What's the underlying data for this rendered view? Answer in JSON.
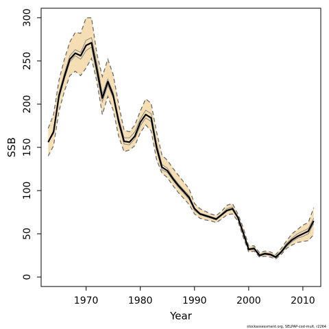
{
  "chart_data": {
    "type": "line",
    "xlabel": "Year",
    "ylabel": "SSB",
    "xlim": [
      1961.7,
      2013.3
    ],
    "ylim": [
      -11,
      311
    ],
    "xticks": [
      1970,
      1980,
      1990,
      2000,
      2010
    ],
    "yticks": [
      0,
      50,
      100,
      150,
      200,
      250,
      300
    ],
    "credit": "stockassessment.org, SELPAP-cod-mult, r2264",
    "colors": {
      "band": "#f5deb3",
      "line": "#000000",
      "ci": "#6b6b6b",
      "inner": "#888888"
    },
    "years": [
      1963,
      1964,
      1965,
      1966,
      1967,
      1968,
      1969,
      1970,
      1971,
      1972,
      1973,
      1974,
      1975,
      1976,
      1977,
      1978,
      1979,
      1980,
      1981,
      1982,
      1983,
      1984,
      1985,
      1986,
      1987,
      1988,
      1989,
      1990,
      1991,
      1992,
      1993,
      1994,
      1995,
      1996,
      1997,
      1998,
      1999,
      2000,
      2001,
      2002,
      2003,
      2004,
      2005,
      2006,
      2007,
      2008,
      2009,
      2010,
      2011,
      2012
    ],
    "series": [
      {
        "role": "estimate",
        "values": [
          156,
          168,
          210,
          232,
          252,
          259,
          256,
          268,
          271,
          240,
          207,
          226,
          210,
          180,
          157,
          156,
          163,
          179,
          188,
          184,
          150,
          127,
          123,
          114,
          106,
          99,
          92,
          79,
          73,
          71,
          69,
          67,
          72,
          77,
          79,
          69,
          51,
          32,
          33,
          25,
          27,
          26,
          23,
          29,
          37,
          43,
          47,
          50,
          53,
          65
        ]
      },
      {
        "role": "inner-upper",
        "values": [
          156,
          170,
          213,
          236,
          256,
          263,
          260,
          274,
          277,
          247,
          212,
          229,
          213,
          184,
          161,
          161,
          168,
          183,
          193,
          189,
          155,
          130,
          126,
          116,
          108,
          101,
          94,
          80,
          74,
          72,
          70,
          68,
          73,
          79,
          81,
          70,
          53,
          33,
          34,
          26,
          28,
          27,
          24,
          30,
          39,
          45,
          50,
          53,
          56,
          68
        ]
      },
      {
        "role": "inner-lower",
        "values": [
          156,
          166,
          207,
          229,
          249,
          256,
          252,
          262,
          266,
          234,
          203,
          222,
          207,
          177,
          154,
          153,
          160,
          175,
          184,
          180,
          147,
          124,
          121,
          112,
          104,
          97,
          90,
          77,
          72,
          70,
          68,
          66,
          71,
          76,
          78,
          68,
          50,
          31,
          32,
          24,
          26,
          25,
          22,
          28,
          35,
          41,
          45,
          47,
          50,
          62
        ]
      },
      {
        "role": "ci-upper",
        "values": [
          172,
          188,
          228,
          252,
          272,
          283,
          282,
          300,
          300,
          258,
          232,
          252,
          234,
          200,
          170,
          168,
          176,
          192,
          206,
          201,
          168,
          141,
          135,
          126,
          118,
          110,
          102,
          85,
          79,
          76,
          73,
          71,
          76,
          83,
          85,
          73,
          57,
          36,
          36,
          28,
          30,
          29,
          26,
          33,
          42,
          50,
          55,
          60,
          63,
          80
        ]
      },
      {
        "role": "ci-lower",
        "values": [
          140,
          152,
          192,
          215,
          233,
          238,
          233,
          242,
          253,
          226,
          188,
          209,
          193,
          163,
          145,
          147,
          152,
          167,
          176,
          169,
          136,
          120,
          115,
          106,
          98,
          91,
          84,
          73,
          68,
          66,
          65,
          63,
          67,
          72,
          73,
          65,
          46,
          29,
          30,
          23,
          24,
          23,
          21,
          26,
          33,
          37,
          40,
          41,
          42,
          49
        ]
      }
    ]
  }
}
